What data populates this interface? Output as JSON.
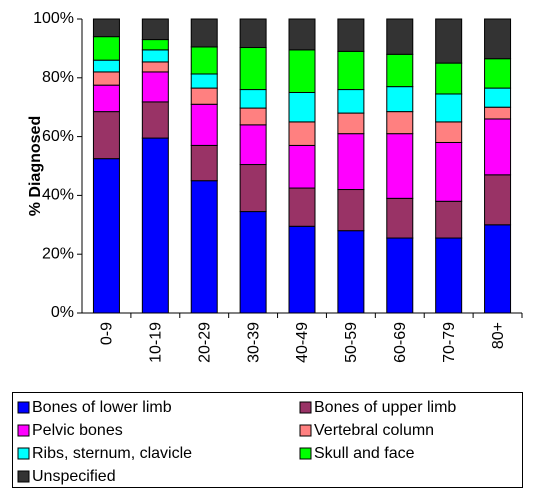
{
  "chart_data": {
    "type": "stacked-bar",
    "y_label": "% Diagnosed",
    "categories": [
      "0-9",
      "10-19",
      "20-29",
      "30-39",
      "40-49",
      "50-59",
      "60-69",
      "70-79",
      "80+"
    ],
    "series": [
      {
        "name": "Bones of lower limb",
        "color": "#0000ff",
        "values": [
          52.5,
          59.5,
          45,
          34.5,
          29.5,
          28,
          25.5,
          25.5,
          30
        ]
      },
      {
        "name": "Bones of upper limb",
        "color": "#993366",
        "values": [
          16,
          12.3,
          12,
          16,
          13,
          14,
          13.5,
          12.5,
          17
        ]
      },
      {
        "name": "Pelvic bones",
        "color": "#ff00ff",
        "values": [
          9,
          10.2,
          14,
          13.5,
          14.5,
          19,
          22,
          20,
          19
        ]
      },
      {
        "name": "Vertebral column",
        "color": "#ff8080",
        "values": [
          4.5,
          3.4,
          5.5,
          5.7,
          8,
          7,
          7.5,
          7,
          4
        ]
      },
      {
        "name": "Ribs, sternum, clavicle",
        "color": "#00ffff",
        "values": [
          4,
          4.1,
          4.8,
          6.3,
          10,
          8,
          8.5,
          9.5,
          6.5
        ]
      },
      {
        "name": "Skull and face",
        "color": "#00ff00",
        "values": [
          8,
          3.5,
          9.2,
          14.3,
          14.5,
          13,
          11,
          10.5,
          10
        ]
      },
      {
        "name": "Unspecified",
        "color": "#333333",
        "values": [
          6,
          7,
          9.5,
          9.7,
          10.5,
          11,
          12,
          15,
          13.5
        ]
      }
    ],
    "ylim": [
      0,
      100
    ],
    "yticks": [
      {
        "value": 0,
        "label": "0%"
      },
      {
        "value": 20,
        "label": "20%"
      },
      {
        "value": 40,
        "label": "40%"
      },
      {
        "value": 60,
        "label": "60%"
      },
      {
        "value": 80,
        "label": "80%"
      },
      {
        "value": 100,
        "label": "100%"
      }
    ],
    "legend_position": "bottom"
  }
}
